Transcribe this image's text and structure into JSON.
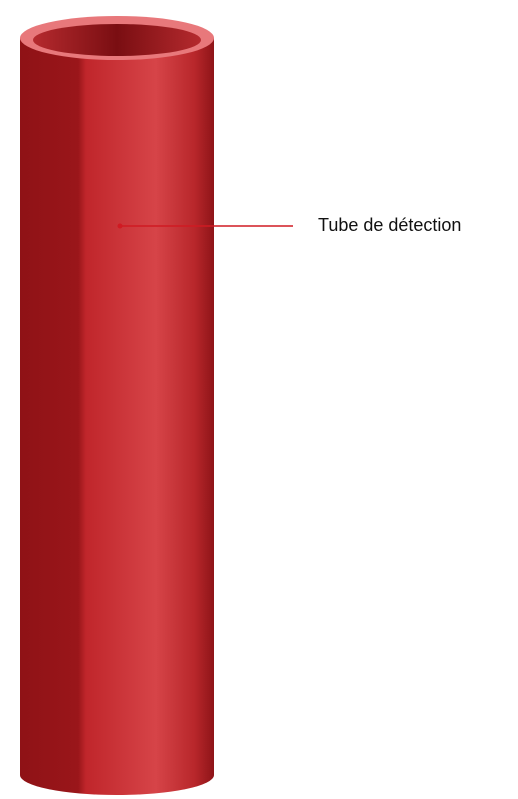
{
  "label": {
    "text": "Tube de détection"
  }
}
